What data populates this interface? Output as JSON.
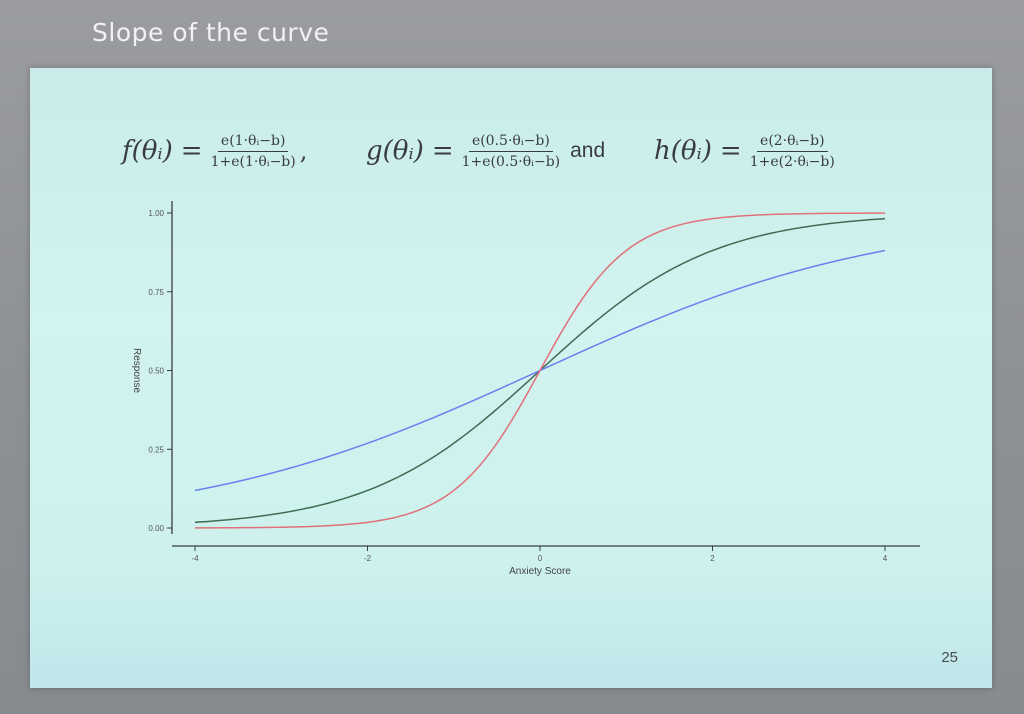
{
  "slide": {
    "title": "Slope of the curve",
    "page_number": "25",
    "formula": {
      "f_lhs": "f(θᵢ)",
      "f_num": "e(1·θᵢ−b)",
      "f_den": "1+e(1·θᵢ−b)",
      "g_lhs": "g(θᵢ)",
      "g_num": "e(0.5·θᵢ−b)",
      "g_den": "1+e(0.5·θᵢ−b)",
      "and_word": "and",
      "h_lhs": "h(θᵢ)",
      "h_num": "e(2·θᵢ−b)",
      "h_den": "1+e(2·θᵢ−b)",
      "eq_sign": "=",
      "comma": ","
    }
  },
  "colors": {
    "f_curve": "#3f6b55",
    "g_curve": "#6a7ff0",
    "h_curve": "#e0707a",
    "axis": "#3a3d3f"
  },
  "chart_data": {
    "type": "line",
    "xlabel": "Anxiety Score",
    "ylabel": "Response",
    "xlim": [
      -4,
      4
    ],
    "ylim": [
      0,
      1
    ],
    "x_ticks": [
      -4,
      -2,
      0,
      2,
      4
    ],
    "x_tick_labels": [
      "-4",
      "-2",
      "0",
      "2",
      "4"
    ],
    "y_ticks": [
      0,
      0.25,
      0.5,
      0.75,
      1
    ],
    "y_tick_labels": [
      "0.00",
      "0.25",
      "0.50",
      "0.75",
      "1.00"
    ],
    "grid": false,
    "legend": "none",
    "x": [
      -4,
      -3.5,
      -3,
      -2.5,
      -2,
      -1.5,
      -1,
      -0.5,
      0,
      0.5,
      1,
      1.5,
      2,
      2.5,
      3,
      3.5,
      4
    ],
    "series": [
      {
        "key": "f",
        "slope": 1,
        "color": "#3f6b55",
        "values": [
          0.018,
          0.029,
          0.047,
          0.076,
          0.119,
          0.182,
          0.269,
          0.378,
          0.5,
          0.622,
          0.731,
          0.818,
          0.881,
          0.924,
          0.953,
          0.971,
          0.982
        ]
      },
      {
        "key": "g",
        "slope": 0.5,
        "color": "#6a7ff0",
        "values": [
          0.119,
          0.148,
          0.182,
          0.223,
          0.269,
          0.321,
          0.378,
          0.438,
          0.5,
          0.562,
          0.622,
          0.679,
          0.731,
          0.777,
          0.818,
          0.852,
          0.881
        ]
      },
      {
        "key": "h",
        "slope": 2,
        "color": "#e0707a",
        "values": [
          0.0003,
          0.0009,
          0.0025,
          0.0067,
          0.018,
          0.047,
          0.119,
          0.269,
          0.5,
          0.731,
          0.881,
          0.953,
          0.982,
          0.993,
          0.998,
          0.999,
          0.9997
        ]
      }
    ]
  }
}
